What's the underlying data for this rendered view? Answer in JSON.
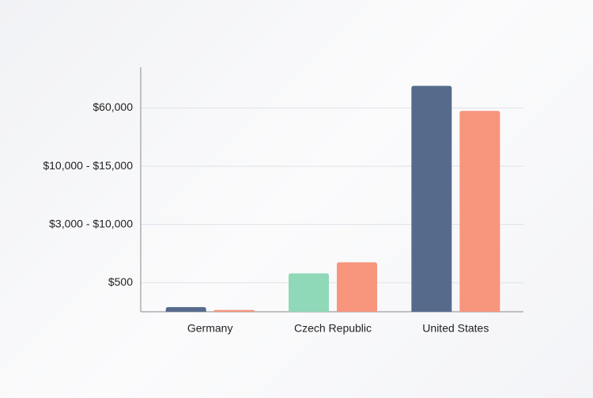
{
  "chart_data": {
    "type": "bar",
    "categories": [
      "Germany",
      "Czech Republic",
      "United States"
    ],
    "series": [
      {
        "color": "#566b8c",
        "colors": [
          "#566b8c",
          "#8fd8b8",
          "#566b8c"
        ],
        "values": [
          0.08,
          0.66,
          3.88
        ]
      },
      {
        "color": "#f7957d",
        "values": [
          0.03,
          0.85,
          3.45
        ]
      }
    ],
    "ylim": [
      0,
      4.2
    ],
    "yticks": [
      {
        "value": 0.5,
        "label": "$500"
      },
      {
        "value": 1.5,
        "label": "$3,000 - $10,000"
      },
      {
        "value": 2.5,
        "label": "$10,000 - $15,000"
      },
      {
        "value": 3.5,
        "label": "$60,000"
      }
    ],
    "grid": true
  }
}
